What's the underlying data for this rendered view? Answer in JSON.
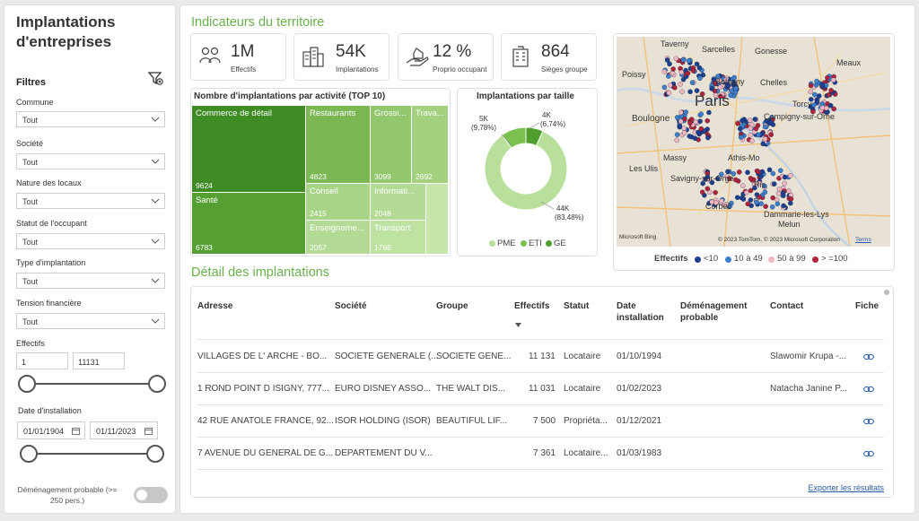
{
  "sidebar": {
    "title": "Implantations d'entreprises",
    "filters_title": "Filtres",
    "filters": [
      {
        "label": "Commune",
        "value": "Tout"
      },
      {
        "label": "Société",
        "value": "Tout"
      },
      {
        "label": "Nature des locaux",
        "value": "Tout"
      },
      {
        "label": "Statut de l'occupant",
        "value": "Tout"
      },
      {
        "label": "Type d'implantation",
        "value": "Tout"
      },
      {
        "label": "Tension financière",
        "value": "Tout"
      }
    ],
    "effectifs": {
      "label": "Effectifs",
      "min": "1",
      "max": "11131"
    },
    "date_installation": {
      "label": "Date d'installation",
      "from": "01/01/1904",
      "to": "01/11/2023"
    },
    "toggle_label": "Déménagement probable (>= 250 pers.)"
  },
  "main": {
    "indicators_title": "Indicateurs du territoire",
    "kpis": [
      {
        "value": "1M",
        "label": "Effectifs",
        "icon": "people-icon"
      },
      {
        "value": "54K",
        "label": "Implantations",
        "icon": "buildings-icon"
      },
      {
        "value": "12 %",
        "label": "Proprio occupant",
        "icon": "hand-house-icon"
      },
      {
        "value": "864",
        "label": "Sièges groupe",
        "icon": "office-building-icon"
      }
    ],
    "treemap": {
      "title": "Nombre d'implantations par activité (TOP 10)",
      "items": [
        {
          "name": "Commerce de détail",
          "value": "9624"
        },
        {
          "name": "Santé",
          "value": "6783"
        },
        {
          "name": "Restaurants",
          "value": "4823"
        },
        {
          "name": "Grossi...",
          "value": "3099"
        },
        {
          "name": "Trava...",
          "value": "2692"
        },
        {
          "name": "Conseil",
          "value": "2415"
        },
        {
          "name": "Enseigneme...",
          "value": "2057"
        },
        {
          "name": "Informati...",
          "value": "2048"
        },
        {
          "name": "Transport",
          "value": "1766"
        },
        {
          "name": "",
          "value": ""
        }
      ]
    },
    "donut": {
      "title": "Implantations par taille",
      "labels": [
        {
          "top": "5K",
          "bottom": "(9,78%)"
        },
        {
          "top": "4K",
          "bottom": "(6,74%)"
        },
        {
          "top": "44K",
          "bottom": "(83,48%)"
        }
      ],
      "legend": [
        "PME",
        "ETI",
        "GE"
      ],
      "colors": [
        "#b9e09a",
        "#7cc04f",
        "#4f9d2d"
      ],
      "fractions": [
        0.8348,
        0.0978,
        0.0674
      ]
    },
    "map": {
      "labels": [
        "Taverny",
        "Sarcelles",
        "Gonesse",
        "Poissy",
        "Meaux",
        "Bobigny",
        "Chelles",
        "Paris",
        "Torcy",
        "Boulogne",
        "Compigny-sur-Orne",
        "Massy",
        "Athis-Mo",
        "Les Ulis",
        "Savigny-sur-Orge",
        "Corbeil",
        "Dammarie-les-Lys",
        "Melun",
        "Ris"
      ],
      "credit": "© 2023 TomTom, © 2023 Microsoft Corporation",
      "terms": "Terms",
      "bing": "Microsoft Bing",
      "legend_title": "Effectifs",
      "legend": [
        {
          "label": "<10",
          "color": "#1f3f8f"
        },
        {
          "label": "10 à 49",
          "color": "#3d7fcb"
        },
        {
          "label": "50 à 99",
          "color": "#f3b6c3"
        },
        {
          "label": "> =100",
          "color": "#b0233a"
        }
      ]
    },
    "details_title": "Détail des implantations",
    "table": {
      "headers": [
        "Adresse",
        "Société",
        "Groupe",
        "Effectifs",
        "Statut",
        "Date installation",
        "Déménagement probable",
        "Contact",
        "Fiche"
      ],
      "rows": [
        [
          "VILLAGES DE L' ARCHE -  BO...",
          "SOCIETE GENERALE (...",
          "SOCIETE GENE...",
          "11 131",
          "Locataire",
          "01/10/1994",
          "",
          "Slawomir Krupa -..."
        ],
        [
          "1 ROND POINT D ISIGNY, 777...",
          "EURO DISNEY ASSO...",
          "THE WALT DIS...",
          "11 031",
          "Locataire",
          "01/02/2023",
          "",
          "Natacha Janine P..."
        ],
        [
          "42 RUE ANATOLE FRANCE, 92...",
          "ISOR HOLDING (ISOR)",
          "BEAUTIFUL LIF...",
          "7 500",
          "Propriéta...",
          "01/12/2021",
          "",
          ""
        ],
        [
          "7 AVENUE DU GENERAL DE G...",
          "DEPARTEMENT DU V...",
          "",
          "7 361",
          "Locataire...",
          "01/03/1983",
          "",
          ""
        ]
      ],
      "export_label": "Exporter les résultats"
    }
  }
}
